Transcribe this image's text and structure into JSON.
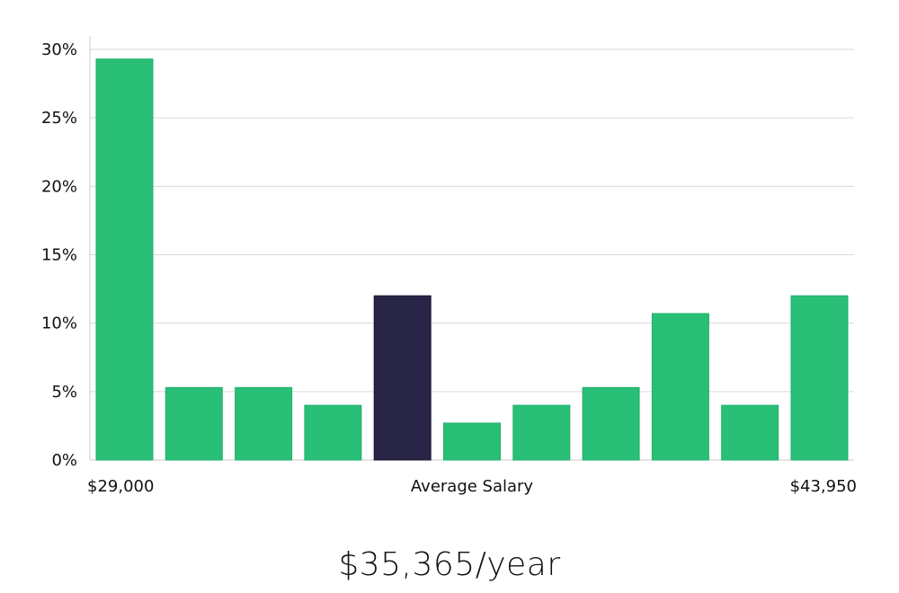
{
  "chart_data": {
    "type": "bar",
    "xlabel": "Average Salary",
    "x_range_labels": {
      "min": "$29,000",
      "max": "$43,950"
    },
    "values": [
      29.3,
      5.3,
      5.3,
      4.0,
      12.0,
      2.7,
      4.0,
      5.3,
      10.7,
      4.0,
      12.0
    ],
    "highlight_index": 4,
    "y_ticks": [
      "0%",
      "5%",
      "10%",
      "15%",
      "20%",
      "25%",
      "30%"
    ],
    "y_tick_values": [
      0,
      5,
      10,
      15,
      20,
      25,
      30
    ],
    "ylim": [
      0,
      30
    ],
    "grid": true,
    "colors": {
      "bar": "#2abf77",
      "highlight": "#282445"
    }
  },
  "summary": {
    "average_salary": "$35,365/year"
  }
}
